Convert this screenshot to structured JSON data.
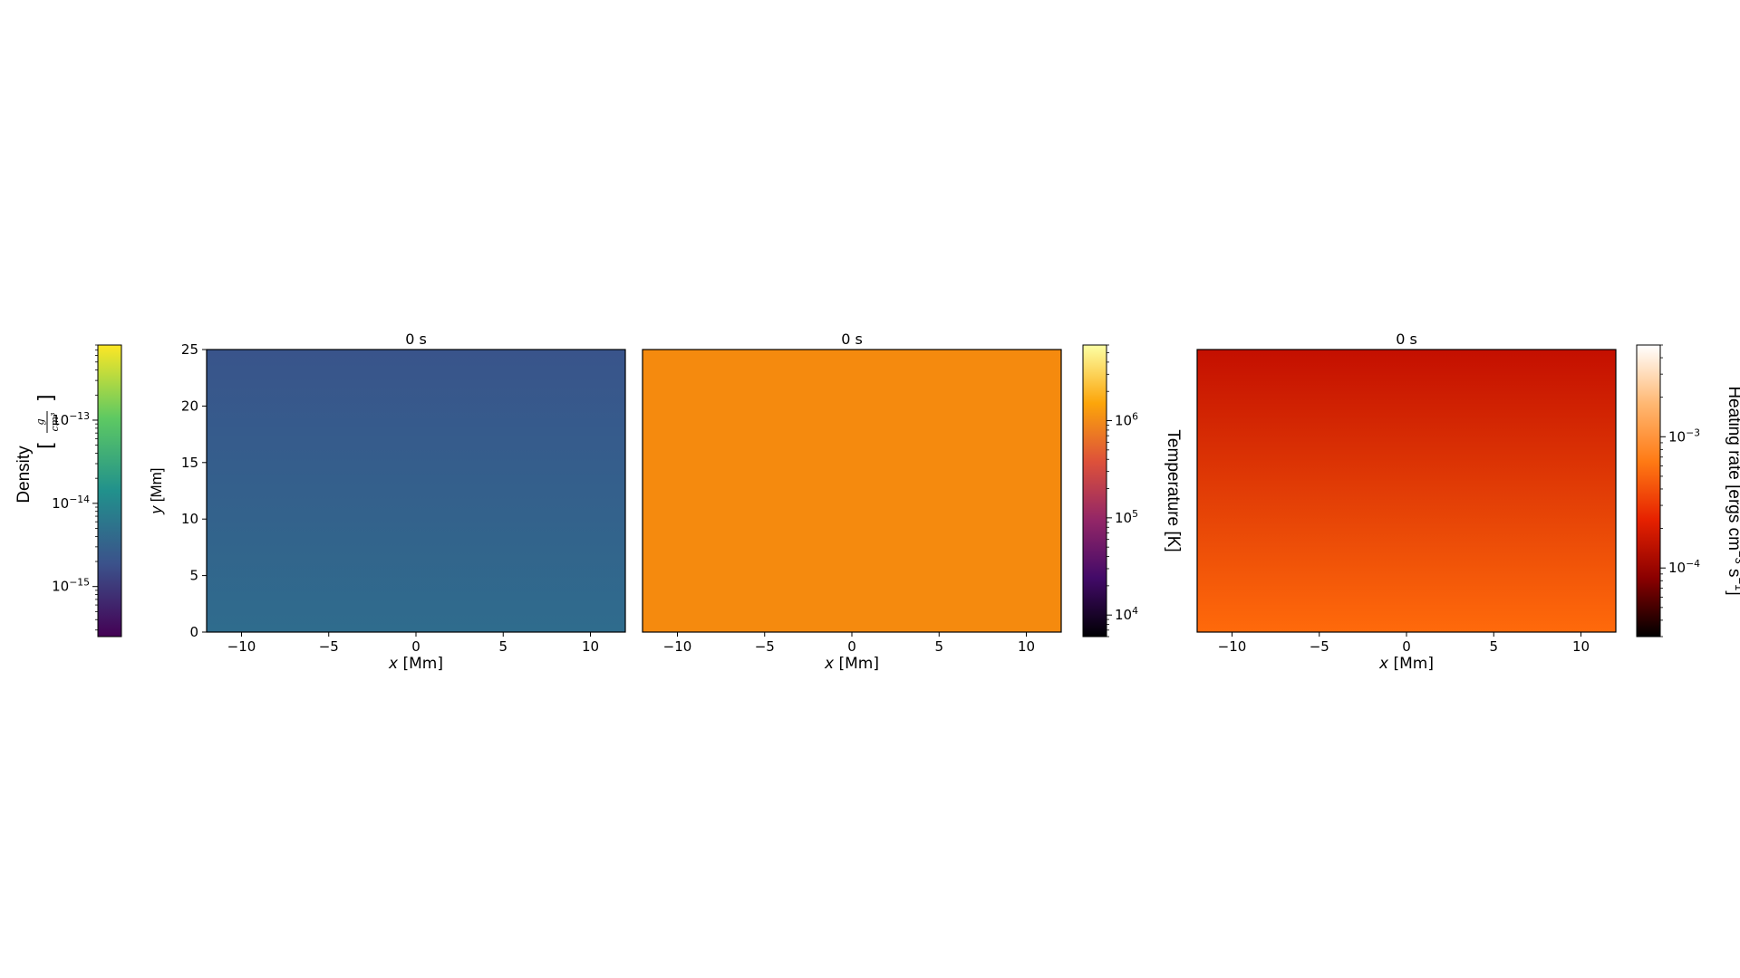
{
  "figure": {
    "background": "#ffffff"
  },
  "chart_data": [
    {
      "type": "heatmap",
      "name": "density",
      "title": "0 s",
      "xlabel_var": "x",
      "xlabel_unit": " [Mm]",
      "ylabel_var": "y",
      "ylabel_unit": " [Mm]",
      "xlim": [
        -12,
        12
      ],
      "ylim": [
        0,
        25
      ],
      "xticks": [
        -10,
        -5,
        0,
        5,
        10
      ],
      "xtick_labels": [
        "−10",
        "−5",
        "0",
        "5",
        "10"
      ],
      "yticks": [
        0,
        5,
        10,
        15,
        20,
        25
      ],
      "ytick_labels": [
        "0",
        "5",
        "10",
        "15",
        "20",
        "25"
      ],
      "colormap": "viridis",
      "field_color_top": "#39548b",
      "field_color_bottom": "#2f6c8d",
      "colorbar": {
        "label": "Density",
        "label_unit_num": "g",
        "label_unit_den": "cm³",
        "scale": "log",
        "range": [
          2.5e-16,
          8e-13
        ],
        "ticks": [
          {
            "value": 1e-13,
            "base": "10",
            "exp": "−13"
          },
          {
            "value": 1e-14,
            "base": "10",
            "exp": "−14"
          },
          {
            "value": 1e-15,
            "base": "10",
            "exp": "−15"
          }
        ],
        "position": "left",
        "colors": [
          "#440154",
          "#3b528b",
          "#21918c",
          "#5ec962",
          "#fde725"
        ]
      }
    },
    {
      "type": "heatmap",
      "name": "temperature",
      "title": "0 s",
      "xlabel_var": "x",
      "xlabel_unit": " [Mm]",
      "xlim": [
        -12,
        12
      ],
      "ylim": [
        0,
        25
      ],
      "xticks": [
        -10,
        -5,
        0,
        5,
        10
      ],
      "xtick_labels": [
        "−10",
        "−5",
        "0",
        "5",
        "10"
      ],
      "colormap": "inferno",
      "field_color_top": "#f58a0e",
      "field_color_bottom": "#f58a0e",
      "colorbar": {
        "label": "Temperature [K]",
        "scale": "log",
        "range": [
          6000.0,
          6000000.0
        ],
        "ticks": [
          {
            "value": 1000000.0,
            "base": "10",
            "exp": "6"
          },
          {
            "value": 100000.0,
            "base": "10",
            "exp": "5"
          },
          {
            "value": 10000.0,
            "base": "10",
            "exp": "4"
          }
        ],
        "position": "right",
        "colors": [
          "#000004",
          "#420a68",
          "#932667",
          "#dd513a",
          "#fca50a",
          "#fcffa4"
        ]
      }
    },
    {
      "type": "heatmap",
      "name": "heating-rate",
      "title": "0 s",
      "xlabel_var": "x",
      "xlabel_unit": " [Mm]",
      "xlim": [
        -12,
        12
      ],
      "ylim": [
        0,
        25
      ],
      "xticks": [
        -10,
        -5,
        0,
        5,
        10
      ],
      "xtick_labels": [
        "−10",
        "−5",
        "0",
        "5",
        "10"
      ],
      "colormap": "gist_heat",
      "field_color_top": "#c40f00",
      "field_color_bottom": "#ff6a0b",
      "colorbar": {
        "label_main": "Heating rate [ergs cm",
        "label_exp1": "−3",
        "label_mid": " s",
        "label_exp2": "−1",
        "label_end": "]",
        "scale": "log",
        "range": [
          3e-05,
          0.005
        ],
        "ticks": [
          {
            "value": 0.001,
            "base": "10",
            "exp": "−3"
          },
          {
            "value": 0.0001,
            "base": "10",
            "exp": "−4"
          }
        ],
        "position": "right",
        "colors": [
          "#000000",
          "#8a0000",
          "#e62100",
          "#ff7a14",
          "#ffb873",
          "#ffffff"
        ]
      }
    }
  ]
}
